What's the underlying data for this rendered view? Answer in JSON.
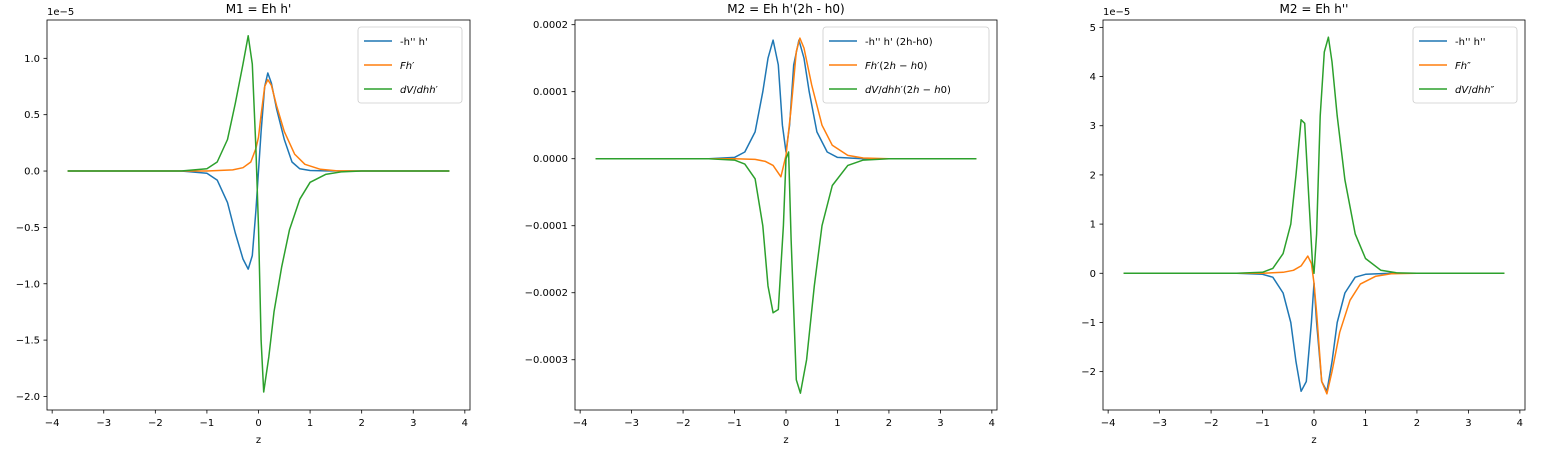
{
  "figure": {
    "background": "#ffffff"
  },
  "chart_data": [
    {
      "type": "line",
      "title": "M1 = Eh h'",
      "xlabel": "z",
      "ylabel": "",
      "offset_text": "1e−5",
      "xlim": [
        -4.1,
        4.1
      ],
      "ylim": [
        -2.12,
        1.34
      ],
      "xticks": [
        -4,
        -3,
        -2,
        -1,
        0,
        1,
        2,
        3,
        4
      ],
      "xtick_labels": [
        "−4",
        "−3",
        "−2",
        "−1",
        "0",
        "1",
        "2",
        "3",
        "4"
      ],
      "yticks": [
        -2.0,
        -1.5,
        -1.0,
        -0.5,
        0.0,
        0.5,
        1.0
      ],
      "ytick_labels": [
        "−2.0",
        "−1.5",
        "−1.0",
        "−0.5",
        "0.0",
        "0.5",
        "1.0"
      ],
      "grid": false,
      "legend_position": "top-right",
      "series": [
        {
          "name": "-h'' h'",
          "color": "#1f77b4",
          "x": [
            -3.7,
            -1.5,
            -1.0,
            -0.8,
            -0.6,
            -0.45,
            -0.3,
            -0.2,
            -0.12,
            -0.05,
            0.0,
            0.05,
            0.12,
            0.18,
            0.25,
            0.35,
            0.5,
            0.65,
            0.8,
            1.0,
            1.3,
            1.6,
            2.0,
            3.7
          ],
          "y": [
            0,
            0,
            -0.02,
            -0.08,
            -0.28,
            -0.55,
            -0.78,
            -0.87,
            -0.75,
            -0.35,
            0.0,
            0.35,
            0.75,
            0.87,
            0.78,
            0.55,
            0.28,
            0.08,
            0.02,
            0.005,
            0.001,
            0,
            0,
            0
          ]
        },
        {
          "name": "Fh′",
          "color": "#ff7f0e",
          "x": [
            -3.7,
            -1.0,
            -0.5,
            -0.3,
            -0.15,
            -0.05,
            0.0,
            0.05,
            0.12,
            0.18,
            0.25,
            0.35,
            0.5,
            0.7,
            0.9,
            1.2,
            1.5,
            2.0,
            3.7
          ],
          "y": [
            0,
            0,
            0.01,
            0.03,
            0.08,
            0.2,
            0.3,
            0.5,
            0.75,
            0.81,
            0.76,
            0.58,
            0.35,
            0.15,
            0.06,
            0.015,
            0.003,
            0,
            0
          ]
        },
        {
          "name": "dV/dhh′",
          "color": "#2ca02c",
          "x": [
            -3.7,
            -1.5,
            -1.0,
            -0.8,
            -0.6,
            -0.45,
            -0.3,
            -0.2,
            -0.12,
            -0.05,
            0.0,
            0.05,
            0.1,
            0.2,
            0.3,
            0.45,
            0.6,
            0.8,
            1.0,
            1.3,
            1.6,
            2.0,
            3.7
          ],
          "y": [
            0,
            0,
            0.02,
            0.08,
            0.28,
            0.6,
            0.95,
            1.2,
            0.95,
            0.2,
            -0.5,
            -1.5,
            -1.96,
            -1.65,
            -1.25,
            -0.85,
            -0.52,
            -0.25,
            -0.1,
            -0.03,
            -0.008,
            0,
            0
          ]
        }
      ]
    },
    {
      "type": "line",
      "title": "M2 = Eh h'(2h - h0)",
      "xlabel": "z",
      "ylabel": "",
      "offset_text": "",
      "xlim": [
        -4.1,
        4.1
      ],
      "ylim": [
        -0.000375,
        0.000207
      ],
      "xticks": [
        -4,
        -3,
        -2,
        -1,
        0,
        1,
        2,
        3,
        4
      ],
      "xtick_labels": [
        "−4",
        "−3",
        "−2",
        "−1",
        "0",
        "1",
        "2",
        "3",
        "4"
      ],
      "yticks": [
        -0.0003,
        -0.0002,
        -0.0001,
        0.0,
        0.0001,
        0.0002
      ],
      "ytick_labels": [
        "−0.0003",
        "−0.0002",
        "−0.0001",
        "0.0000",
        "0.0001",
        "0.0002"
      ],
      "grid": false,
      "legend_position": "top-right",
      "series": [
        {
          "name": "-h'' h' (2h-h0)",
          "color": "#1f77b4",
          "x": [
            -3.7,
            -1.5,
            -1.0,
            -0.8,
            -0.6,
            -0.45,
            -0.35,
            -0.25,
            -0.15,
            -0.07,
            0.0,
            0.07,
            0.15,
            0.25,
            0.35,
            0.45,
            0.6,
            0.8,
            1.0,
            1.5,
            3.7
          ],
          "y": [
            0,
            0,
            2e-06,
            1e-05,
            4e-05,
            0.0001,
            0.00015,
            0.000177,
            0.00014,
            5e-05,
            1e-05,
            5e-05,
            0.00014,
            0.000177,
            0.00015,
            0.0001,
            4e-05,
            1e-05,
            2e-06,
            0,
            0
          ]
        },
        {
          "name": "Fh′(2h − h0)",
          "color": "#ff7f0e",
          "x": [
            -3.7,
            -1.0,
            -0.6,
            -0.4,
            -0.25,
            -0.1,
            0.0,
            0.1,
            0.2,
            0.27,
            0.35,
            0.5,
            0.7,
            0.9,
            1.2,
            1.5,
            2.0,
            3.7
          ],
          "y": [
            0,
            0,
            -1e-06,
            -4e-06,
            -1e-05,
            -2.7e-05,
            5e-06,
            7.5e-05,
            0.00016,
            0.00018,
            0.000165,
            0.00011,
            5e-05,
            2e-05,
            5e-06,
            1e-06,
            0,
            0
          ]
        },
        {
          "name": "dV/dhh′(2h − h0)",
          "color": "#2ca02c",
          "x": [
            -3.7,
            -1.5,
            -1.0,
            -0.8,
            -0.6,
            -0.45,
            -0.35,
            -0.25,
            -0.15,
            -0.05,
            0.0,
            0.05,
            0.1,
            0.2,
            0.28,
            0.4,
            0.55,
            0.7,
            0.9,
            1.2,
            1.5,
            2.0,
            3.7
          ],
          "y": [
            0,
            0,
            -2e-06,
            -8e-06,
            -3e-05,
            -0.0001,
            -0.00019,
            -0.00023,
            -0.000225,
            -0.0001,
            0.0,
            1e-05,
            -0.00012,
            -0.00033,
            -0.00035,
            -0.0003,
            -0.00019,
            -0.0001,
            -4e-05,
            -1e-05,
            -2e-06,
            0,
            0
          ]
        }
      ]
    },
    {
      "type": "line",
      "title": "M2 = Eh h''",
      "xlabel": "z",
      "ylabel": "",
      "offset_text": "1e−5",
      "xlim": [
        -4.1,
        4.1
      ],
      "ylim": [
        -2.78,
        5.15
      ],
      "xticks": [
        -4,
        -3,
        -2,
        -1,
        0,
        1,
        2,
        3,
        4
      ],
      "xtick_labels": [
        "−4",
        "−3",
        "−2",
        "−1",
        "0",
        "1",
        "2",
        "3",
        "4"
      ],
      "yticks": [
        -2,
        -1,
        0,
        1,
        2,
        3,
        4,
        5
      ],
      "ytick_labels": [
        "−2",
        "−1",
        "0",
        "1",
        "2",
        "3",
        "4",
        "5"
      ],
      "grid": false,
      "legend_position": "top-right",
      "series": [
        {
          "name": "-h'' h''",
          "color": "#1f77b4",
          "x": [
            -3.7,
            -1.5,
            -1.0,
            -0.8,
            -0.6,
            -0.45,
            -0.35,
            -0.25,
            -0.15,
            -0.05,
            0.0,
            0.05,
            0.15,
            0.25,
            0.35,
            0.45,
            0.6,
            0.8,
            1.0,
            1.5,
            3.7
          ],
          "y": [
            0,
            0,
            -0.02,
            -0.08,
            -0.4,
            -1.0,
            -1.8,
            -2.4,
            -2.2,
            -1.0,
            -0.2,
            -1.0,
            -2.2,
            -2.4,
            -1.8,
            -1.0,
            -0.4,
            -0.08,
            -0.02,
            0,
            0
          ]
        },
        {
          "name": "Fh″",
          "color": "#ff7f0e",
          "x": [
            -3.7,
            -1.0,
            -0.6,
            -0.4,
            -0.25,
            -0.12,
            -0.05,
            0.0,
            0.05,
            0.15,
            0.25,
            0.35,
            0.5,
            0.7,
            0.9,
            1.2,
            1.5,
            2.0,
            3.7
          ],
          "y": [
            0,
            0,
            0.02,
            0.06,
            0.15,
            0.35,
            0.2,
            -0.2,
            -0.8,
            -2.2,
            -2.45,
            -2.0,
            -1.2,
            -0.55,
            -0.22,
            -0.06,
            -0.01,
            0,
            0
          ]
        },
        {
          "name": "dV/dhh″",
          "color": "#2ca02c",
          "x": [
            -3.7,
            -1.5,
            -1.0,
            -0.8,
            -0.6,
            -0.45,
            -0.35,
            -0.25,
            -0.18,
            -0.1,
            -0.03,
            0.0,
            0.05,
            0.12,
            0.2,
            0.28,
            0.35,
            0.45,
            0.6,
            0.8,
            1.0,
            1.3,
            1.6,
            2.0,
            3.7
          ],
          "y": [
            0,
            0,
            0.02,
            0.1,
            0.4,
            1.0,
            2.0,
            3.12,
            3.05,
            1.5,
            0.2,
            0.0,
            0.8,
            3.2,
            4.5,
            4.8,
            4.3,
            3.2,
            1.9,
            0.8,
            0.3,
            0.06,
            0.01,
            0,
            0
          ]
        }
      ]
    }
  ]
}
